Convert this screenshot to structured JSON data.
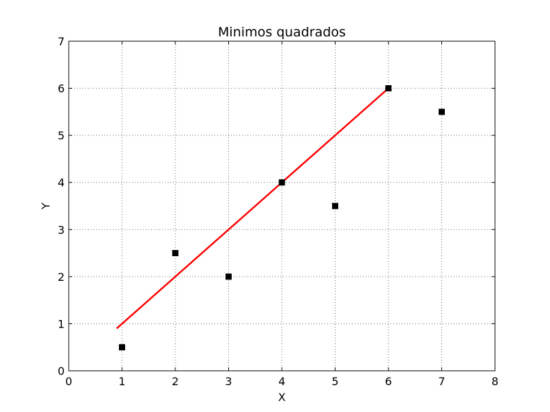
{
  "chart_data": {
    "type": "scatter",
    "title": "Minimos quadrados",
    "xlabel": "X",
    "ylabel": "Y",
    "xlim": [
      0,
      8
    ],
    "ylim": [
      0,
      7
    ],
    "xticks": [
      "0",
      "1",
      "2",
      "3",
      "4",
      "5",
      "6",
      "7",
      "8"
    ],
    "yticks": [
      "0",
      "1",
      "2",
      "3",
      "4",
      "5",
      "6",
      "7"
    ],
    "grid": true,
    "series": [
      {
        "marker": "square",
        "color": "#000000",
        "points": [
          {
            "x": 1,
            "y": 0.5
          },
          {
            "x": 2,
            "y": 2.5
          },
          {
            "x": 3,
            "y": 2.0
          },
          {
            "x": 4,
            "y": 4.0
          },
          {
            "x": 5,
            "y": 3.5
          },
          {
            "x": 6,
            "y": 6.0
          },
          {
            "x": 7,
            "y": 5.5
          }
        ]
      },
      {
        "type": "line",
        "color": "#ff0000",
        "points": [
          {
            "x": 0.9,
            "y": 0.9
          },
          {
            "x": 6.0,
            "y": 6.0
          }
        ]
      }
    ]
  }
}
